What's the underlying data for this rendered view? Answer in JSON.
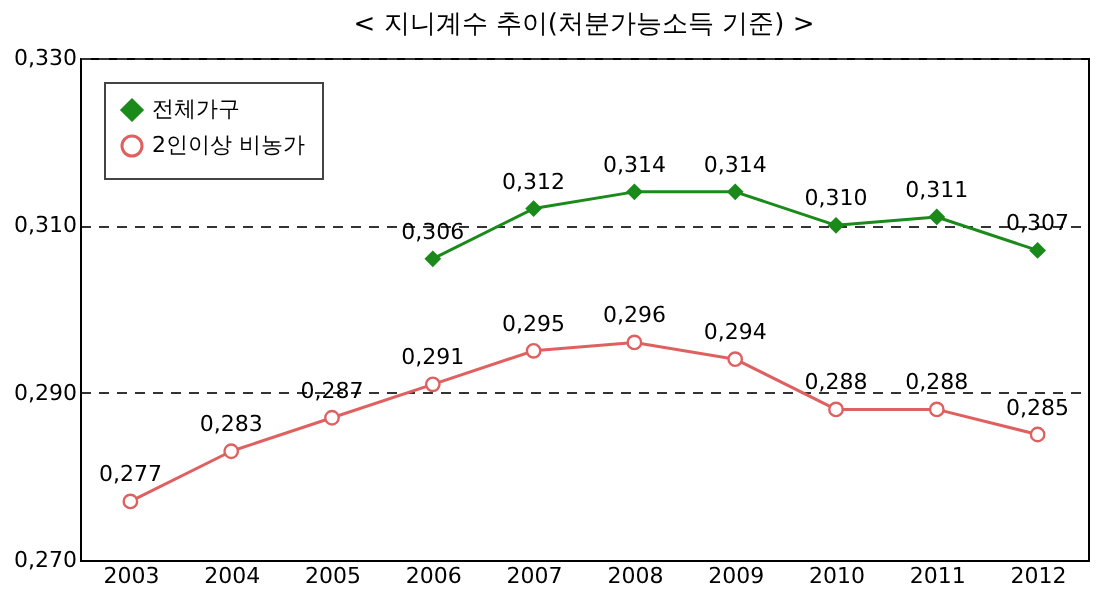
{
  "chart_data": {
    "type": "line",
    "title": "< 지니계수 추이(처분가능소득 기준) >",
    "categories": [
      "2003",
      "2004",
      "2005",
      "2006",
      "2007",
      "2008",
      "2009",
      "2010",
      "2011",
      "2012"
    ],
    "series": [
      {
        "name": "전체가구",
        "color": "#1a8a1a",
        "marker": "diamond",
        "values": [
          null,
          null,
          null,
          0.306,
          0.312,
          0.314,
          0.314,
          0.31,
          0.311,
          0.307
        ],
        "value_labels": [
          null,
          null,
          null,
          "0,306",
          "0,312",
          "0,314",
          "0,314",
          "0,310",
          "0,311",
          "0,307"
        ]
      },
      {
        "name": "2인이상 비농가",
        "color": "#e06060",
        "marker": "circle",
        "values": [
          0.277,
          0.283,
          0.287,
          0.291,
          0.295,
          0.296,
          0.294,
          0.288,
          0.288,
          0.285
        ],
        "value_labels": [
          "0,277",
          "0,283",
          "0,287",
          "0,291",
          "0,295",
          "0,296",
          "0,294",
          "0,288",
          "0,288",
          "0,285"
        ]
      }
    ],
    "ylim": [
      0.27,
      0.33
    ],
    "yticks": [
      {
        "value": 0.27,
        "label": "0,270"
      },
      {
        "value": 0.29,
        "label": "0,290"
      },
      {
        "value": 0.31,
        "label": "0,310"
      },
      {
        "value": 0.33,
        "label": "0,330"
      }
    ],
    "grid": "y",
    "legend": "top left",
    "line_style": "solid"
  }
}
